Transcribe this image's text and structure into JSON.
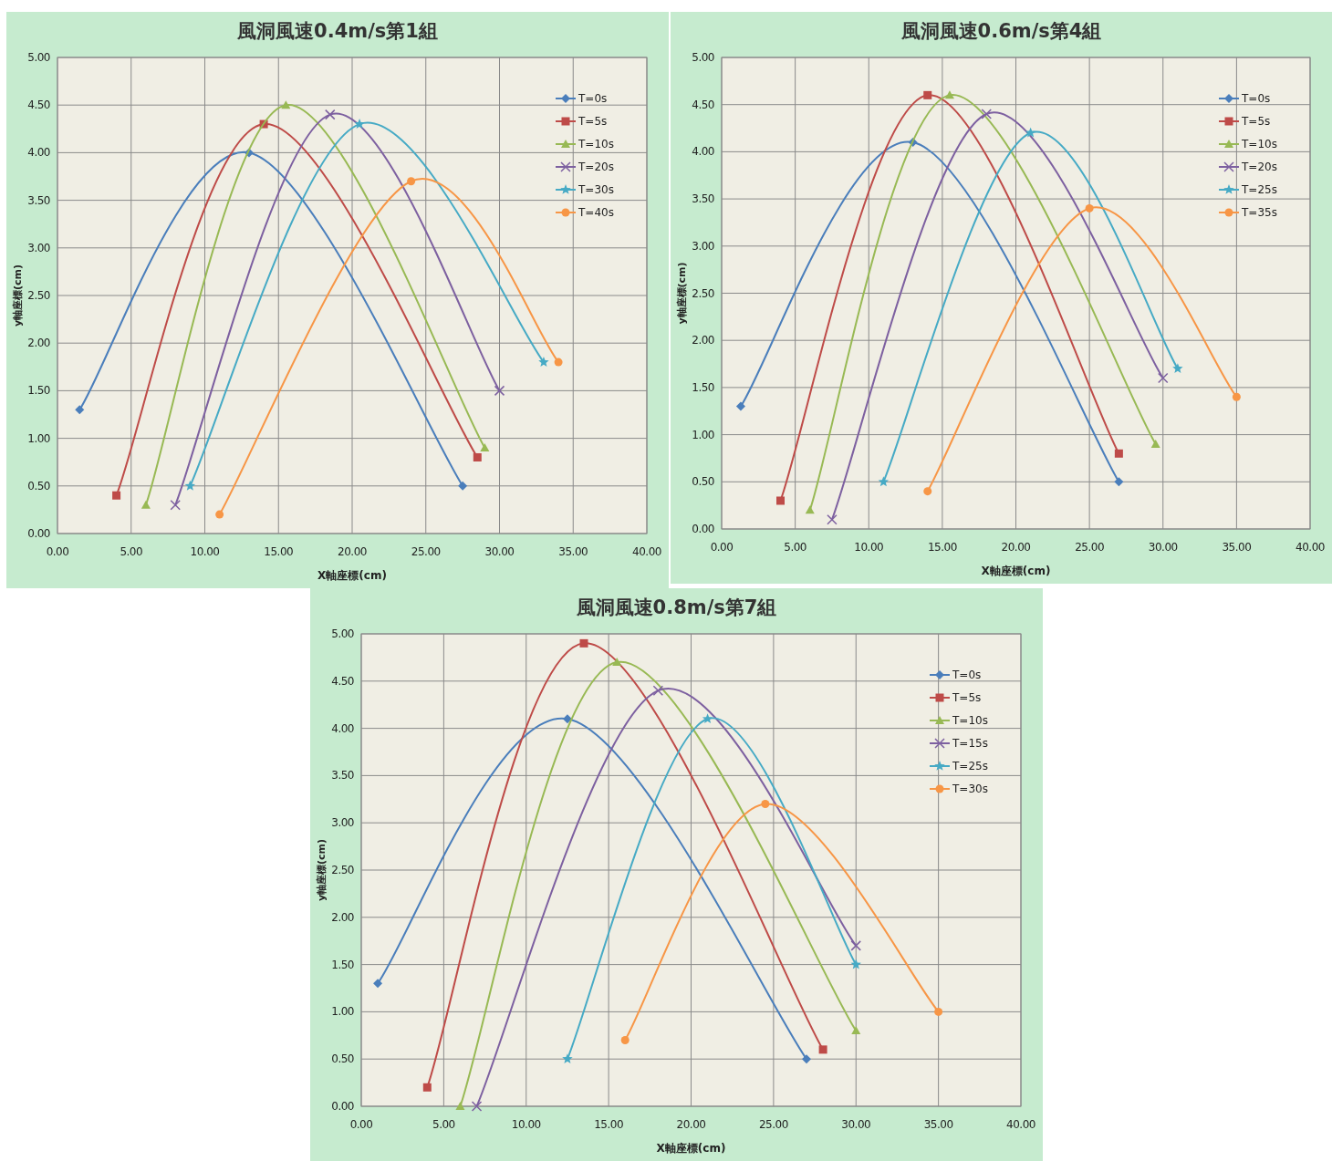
{
  "chart_data": [
    {
      "type": "line",
      "title": "風洞風速0.4m/s第1組",
      "xlabel": "X軸座標(cm)",
      "ylabel": "y軸座標(cm)",
      "xlim": [
        0,
        40
      ],
      "ylim": [
        0,
        5
      ],
      "grid": true,
      "legend": "top right",
      "xticks": [
        {
          "value": 0,
          "label": "0.00"
        },
        {
          "value": 5,
          "label": "5.00"
        },
        {
          "value": 10,
          "label": "10.00"
        },
        {
          "value": 15,
          "label": "15.00"
        },
        {
          "value": 20,
          "label": "20.00"
        },
        {
          "value": 25,
          "label": "25.00"
        },
        {
          "value": 30,
          "label": "30.00"
        },
        {
          "value": 35,
          "label": "35.00"
        },
        {
          "value": 40,
          "label": "40.00"
        }
      ],
      "yticks": [
        {
          "value": 0,
          "label": "0.00"
        },
        {
          "value": 0.5,
          "label": "0.50"
        },
        {
          "value": 1,
          "label": "1.00"
        },
        {
          "value": 1.5,
          "label": "1.50"
        },
        {
          "value": 2,
          "label": "2.00"
        },
        {
          "value": 2.5,
          "label": "2.50"
        },
        {
          "value": 3,
          "label": "3.00"
        },
        {
          "value": 3.5,
          "label": "3.50"
        },
        {
          "value": 4,
          "label": "4.00"
        },
        {
          "value": 4.5,
          "label": "4.50"
        },
        {
          "value": 5,
          "label": "5.00"
        }
      ],
      "series": [
        {
          "name": "T=0s",
          "color": "#4a7ebb",
          "marker": "diamond",
          "x": [
            1.5,
            13,
            27.5
          ],
          "values": [
            1.3,
            4.0,
            0.5
          ]
        },
        {
          "name": "T=5s",
          "color": "#be4b48",
          "marker": "square",
          "x": [
            4,
            14,
            28.5
          ],
          "values": [
            0.4,
            4.3,
            0.8
          ]
        },
        {
          "name": "T=10s",
          "color": "#98b954",
          "marker": "triangle",
          "x": [
            6,
            15.5,
            29
          ],
          "values": [
            0.3,
            4.5,
            0.9
          ]
        },
        {
          "name": "T=20s",
          "color": "#7d60a0",
          "marker": "cross",
          "x": [
            8,
            18.5,
            30
          ],
          "values": [
            0.3,
            4.4,
            1.5
          ]
        },
        {
          "name": "T=30s",
          "color": "#46aac5",
          "marker": "star",
          "x": [
            9,
            20.5,
            33
          ],
          "values": [
            0.5,
            4.3,
            1.8
          ]
        },
        {
          "name": "T=40s",
          "color": "#f79646",
          "marker": "circle",
          "x": [
            11,
            24,
            34
          ],
          "values": [
            0.2,
            3.7,
            1.8
          ]
        }
      ]
    },
    {
      "type": "line",
      "title": "風洞風速0.6m/s第4組",
      "xlabel": "X軸座標(cm)",
      "ylabel": "y軸座標(cm)",
      "xlim": [
        0,
        40
      ],
      "ylim": [
        0,
        5
      ],
      "grid": true,
      "legend": "top right",
      "xticks": [
        {
          "value": 0,
          "label": "0.00"
        },
        {
          "value": 5,
          "label": "5.00"
        },
        {
          "value": 10,
          "label": "10.00"
        },
        {
          "value": 15,
          "label": "15.00"
        },
        {
          "value": 20,
          "label": "20.00"
        },
        {
          "value": 25,
          "label": "25.00"
        },
        {
          "value": 30,
          "label": "30.00"
        },
        {
          "value": 35,
          "label": "35.00"
        },
        {
          "value": 40,
          "label": "40.00"
        }
      ],
      "yticks": [
        {
          "value": 0,
          "label": "0.00"
        },
        {
          "value": 0.5,
          "label": "0.50"
        },
        {
          "value": 1,
          "label": "1.00"
        },
        {
          "value": 1.5,
          "label": "1.50"
        },
        {
          "value": 2,
          "label": "2.00"
        },
        {
          "value": 2.5,
          "label": "2.50"
        },
        {
          "value": 3,
          "label": "3.00"
        },
        {
          "value": 3.5,
          "label": "3.50"
        },
        {
          "value": 4,
          "label": "4.00"
        },
        {
          "value": 4.5,
          "label": "4.50"
        },
        {
          "value": 5,
          "label": "5.00"
        }
      ],
      "series": [
        {
          "name": "T=0s",
          "color": "#4a7ebb",
          "marker": "diamond",
          "x": [
            1.3,
            13,
            27
          ],
          "values": [
            1.3,
            4.1,
            0.5
          ]
        },
        {
          "name": "T=5s",
          "color": "#be4b48",
          "marker": "square",
          "x": [
            4,
            14,
            27
          ],
          "values": [
            0.3,
            4.6,
            0.8
          ]
        },
        {
          "name": "T=10s",
          "color": "#98b954",
          "marker": "triangle",
          "x": [
            6,
            15.5,
            29.5
          ],
          "values": [
            0.2,
            4.6,
            0.9
          ]
        },
        {
          "name": "T=20s",
          "color": "#7d60a0",
          "marker": "cross",
          "x": [
            7.5,
            18,
            30
          ],
          "values": [
            0.1,
            4.4,
            1.6
          ]
        },
        {
          "name": "T=25s",
          "color": "#46aac5",
          "marker": "star",
          "x": [
            11,
            21,
            31
          ],
          "values": [
            0.5,
            4.2,
            1.7
          ]
        },
        {
          "name": "T=35s",
          "color": "#f79646",
          "marker": "circle",
          "x": [
            14,
            25,
            35
          ],
          "values": [
            0.4,
            3.4,
            1.4
          ]
        }
      ]
    },
    {
      "type": "line",
      "title": "風洞風速0.8m/s第7組",
      "xlabel": "X軸座標(cm)",
      "ylabel": "y軸座標(cm)",
      "xlim": [
        0,
        40
      ],
      "ylim": [
        0,
        5
      ],
      "grid": true,
      "legend": "top right",
      "xticks": [
        {
          "value": 0,
          "label": "0.00"
        },
        {
          "value": 5,
          "label": "5.00"
        },
        {
          "value": 10,
          "label": "10.00"
        },
        {
          "value": 15,
          "label": "15.00"
        },
        {
          "value": 20,
          "label": "20.00"
        },
        {
          "value": 25,
          "label": "25.00"
        },
        {
          "value": 30,
          "label": "30.00"
        },
        {
          "value": 35,
          "label": "35.00"
        },
        {
          "value": 40,
          "label": "40.00"
        }
      ],
      "yticks": [
        {
          "value": 0,
          "label": "0.00"
        },
        {
          "value": 0.5,
          "label": "0.50"
        },
        {
          "value": 1,
          "label": "1.00"
        },
        {
          "value": 1.5,
          "label": "1.50"
        },
        {
          "value": 2,
          "label": "2.00"
        },
        {
          "value": 2.5,
          "label": "2.50"
        },
        {
          "value": 3,
          "label": "3.00"
        },
        {
          "value": 3.5,
          "label": "3.50"
        },
        {
          "value": 4,
          "label": "4.00"
        },
        {
          "value": 4.5,
          "label": "4.50"
        },
        {
          "value": 5,
          "label": "5.00"
        }
      ],
      "series": [
        {
          "name": "T=0s",
          "color": "#4a7ebb",
          "marker": "diamond",
          "x": [
            1,
            12.5,
            27
          ],
          "values": [
            1.3,
            4.1,
            0.5
          ]
        },
        {
          "name": "T=5s",
          "color": "#be4b48",
          "marker": "square",
          "x": [
            4,
            13.5,
            28
          ],
          "values": [
            0.2,
            4.9,
            0.6
          ]
        },
        {
          "name": "T=10s",
          "color": "#98b954",
          "marker": "triangle",
          "x": [
            6,
            15.5,
            30
          ],
          "values": [
            0,
            4.7,
            0.8
          ]
        },
        {
          "name": "T=15s",
          "color": "#7d60a0",
          "marker": "cross",
          "x": [
            7,
            18,
            30
          ],
          "values": [
            0,
            4.4,
            1.7
          ]
        },
        {
          "name": "T=25s",
          "color": "#46aac5",
          "marker": "star",
          "x": [
            12.5,
            21,
            30
          ],
          "values": [
            0.5,
            4.1,
            1.5
          ]
        },
        {
          "name": "T=30s",
          "color": "#f79646",
          "marker": "circle",
          "x": [
            16,
            24.5,
            35
          ],
          "values": [
            0.7,
            3.2,
            1.0
          ]
        }
      ]
    }
  ]
}
